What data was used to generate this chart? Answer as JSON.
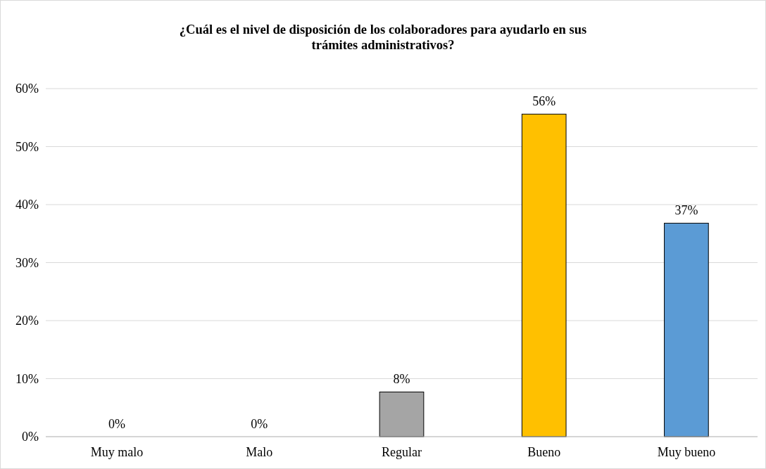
{
  "chart_data": {
    "type": "bar",
    "title": "¿Cuál es el nivel de disposición de los colaboradores para ayudarlo en sus\ntrámites administrativos?",
    "categories": [
      "Muy malo",
      "Malo",
      "Regular",
      "Bueno",
      "Muy bueno"
    ],
    "values": [
      0,
      0,
      7.7,
      55.6,
      36.8
    ],
    "colors": [
      "#4472c4",
      "#ed7d31",
      "#a5a5a5",
      "#ffc000",
      "#5b9bd5"
    ],
    "value_labels": [
      "0%",
      "0%",
      "8%",
      "56%",
      "37%"
    ],
    "ylim": [
      0,
      60
    ],
    "yticks": [
      {
        "value": 0,
        "label": "0%"
      },
      {
        "value": 10,
        "label": "10%"
      },
      {
        "value": 20,
        "label": "20%"
      },
      {
        "value": 30,
        "label": "30%"
      },
      {
        "value": 40,
        "label": "40%"
      },
      {
        "value": 50,
        "label": "50%"
      },
      {
        "value": 60,
        "label": "60%"
      }
    ],
    "grid": "y"
  }
}
